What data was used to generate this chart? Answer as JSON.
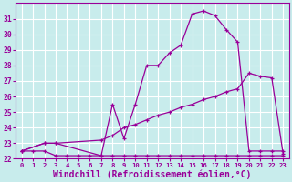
{
  "xlabel": "Windchill (Refroidissement éolien,°C)",
  "bg_color": "#c8ecec",
  "grid_color": "#ffffff",
  "line_color": "#990099",
  "xlim": [
    -0.5,
    23.5
  ],
  "ylim": [
    22,
    32
  ],
  "xticks": [
    0,
    1,
    2,
    3,
    4,
    5,
    6,
    7,
    8,
    9,
    10,
    11,
    12,
    13,
    14,
    15,
    16,
    17,
    18,
    19,
    20,
    21,
    22,
    23
  ],
  "yticks": [
    22,
    23,
    24,
    25,
    26,
    27,
    28,
    29,
    30,
    31
  ],
  "line1_x": [
    0,
    1,
    2,
    3,
    4,
    5,
    6,
    7,
    8,
    9,
    10,
    11,
    12,
    13,
    14,
    15,
    16,
    17,
    18,
    19,
    20,
    21,
    22,
    23
  ],
  "line1_y": [
    22.5,
    22.5,
    22.5,
    22.2,
    22.2,
    22.2,
    22.2,
    22.2,
    22.2,
    22.2,
    22.2,
    22.2,
    22.2,
    22.2,
    22.2,
    22.2,
    22.2,
    22.2,
    22.2,
    22.2,
    22.2,
    22.2,
    22.2,
    22.2
  ],
  "line2_x": [
    0,
    2,
    3,
    7,
    8,
    9,
    10,
    11,
    12,
    13,
    14,
    15,
    16,
    17,
    18,
    19,
    20,
    21,
    22,
    23
  ],
  "line2_y": [
    22.5,
    23.0,
    23.0,
    23.2,
    23.5,
    24.0,
    24.2,
    24.5,
    24.8,
    25.0,
    25.3,
    25.5,
    25.8,
    26.0,
    26.3,
    26.5,
    27.5,
    27.3,
    27.2,
    22.3
  ],
  "line3_x": [
    0,
    2,
    3,
    7,
    8,
    9,
    10,
    11,
    12,
    13,
    14,
    15,
    16,
    17,
    18,
    19,
    20,
    21,
    22,
    23
  ],
  "line3_y": [
    22.5,
    23.0,
    23.0,
    22.2,
    25.5,
    23.3,
    25.5,
    28.0,
    28.0,
    28.8,
    29.3,
    31.3,
    31.5,
    31.2,
    30.3,
    29.5,
    22.5,
    22.5,
    22.5,
    22.5
  ],
  "xlabel_fontsize": 7.0
}
